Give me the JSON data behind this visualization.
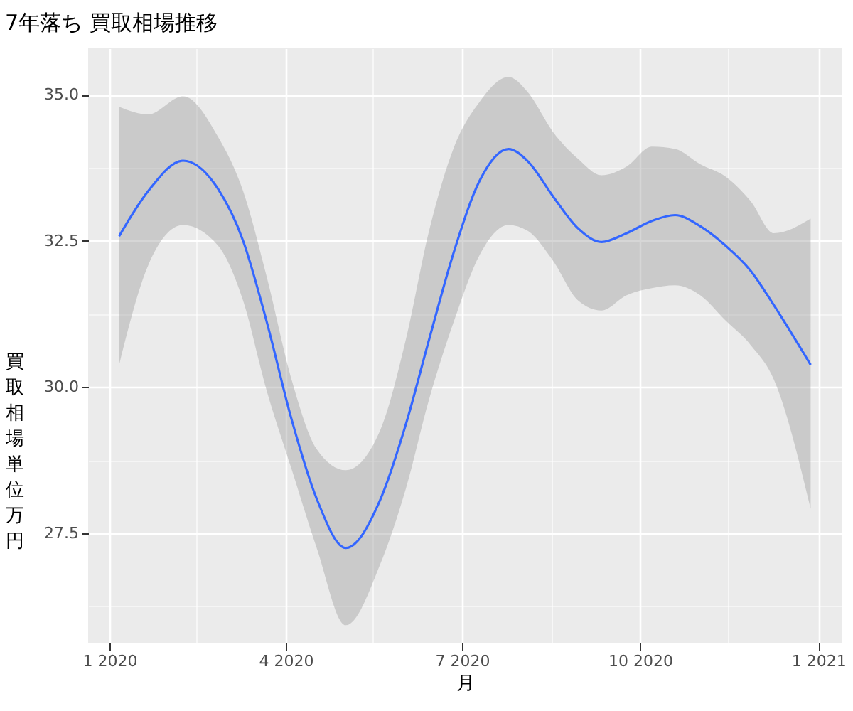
{
  "chart_data": {
    "type": "line",
    "title": "7年落ち 買取相場推移",
    "xlabel": "月",
    "ylabel": "買取相場単位万円",
    "x": [
      "2020-01-06",
      "2020-01-21",
      "2020-02-08",
      "2020-02-26",
      "2020-03-10",
      "2020-03-22",
      "2020-04-04",
      "2020-04-17",
      "2020-05-02",
      "2020-05-20",
      "2020-06-02",
      "2020-06-14",
      "2020-06-27",
      "2020-07-10",
      "2020-07-25",
      "2020-08-04",
      "2020-08-17",
      "2020-08-30",
      "2020-09-11",
      "2020-09-24",
      "2020-10-07",
      "2020-10-19",
      "2020-11-01",
      "2020-11-14",
      "2020-11-27",
      "2020-12-09",
      "2020-12-28"
    ],
    "series": [
      {
        "color": "#3366ff",
        "values": [
          32.58,
          33.35,
          33.87,
          33.39,
          32.5,
          31.14,
          29.45,
          28.09,
          27.25,
          28.09,
          29.36,
          30.81,
          32.33,
          33.52,
          34.07,
          33.86,
          33.26,
          32.71,
          32.48,
          32.63,
          32.84,
          32.94,
          32.75,
          32.42,
          31.99,
          31.4,
          30.38
        ],
        "upper": [
          34.79,
          34.66,
          34.97,
          34.28,
          33.35,
          31.91,
          30.13,
          28.94,
          28.58,
          29.28,
          30.81,
          32.67,
          34.11,
          34.87,
          35.3,
          35.04,
          34.36,
          33.9,
          33.62,
          33.77,
          34.11,
          34.07,
          33.81,
          33.6,
          33.18,
          32.63,
          32.88
        ],
        "lower": [
          30.38,
          32.08,
          32.77,
          32.42,
          31.48,
          29.96,
          28.6,
          27.25,
          25.93,
          26.99,
          28.26,
          29.79,
          31.14,
          32.25,
          32.77,
          32.67,
          32.16,
          31.48,
          31.31,
          31.57,
          31.69,
          31.74,
          31.57,
          31.14,
          30.72,
          30.13,
          27.92
        ]
      }
    ],
    "xlim": [
      "2019-12-21",
      "2021-01-13"
    ],
    "xticks": [
      {
        "value": "2020-01-01",
        "label": "1 2020"
      },
      {
        "value": "2020-02-15",
        "label": null
      },
      {
        "value": "2020-04-01",
        "label": "4 2020"
      },
      {
        "value": "2020-05-16",
        "label": null
      },
      {
        "value": "2020-07-01",
        "label": "7 2020"
      },
      {
        "value": "2020-08-16",
        "label": null
      },
      {
        "value": "2020-10-01",
        "label": "10 2020"
      },
      {
        "value": "2020-11-15",
        "label": null
      },
      {
        "value": "2021-01-01",
        "label": "1 2021"
      }
    ],
    "ylim": [
      25.63,
      35.79
    ],
    "yticks": [
      {
        "value": 26.25,
        "label": null
      },
      {
        "value": 27.5,
        "label": "27.5"
      },
      {
        "value": 28.75,
        "label": null
      },
      {
        "value": 30,
        "label": "30.0"
      },
      {
        "value": 31.25,
        "label": null
      },
      {
        "value": 32.5,
        "label": "32.5"
      },
      {
        "value": 33.75,
        "label": null
      },
      {
        "value": 35,
        "label": "35.0"
      }
    ],
    "grid": true
  }
}
